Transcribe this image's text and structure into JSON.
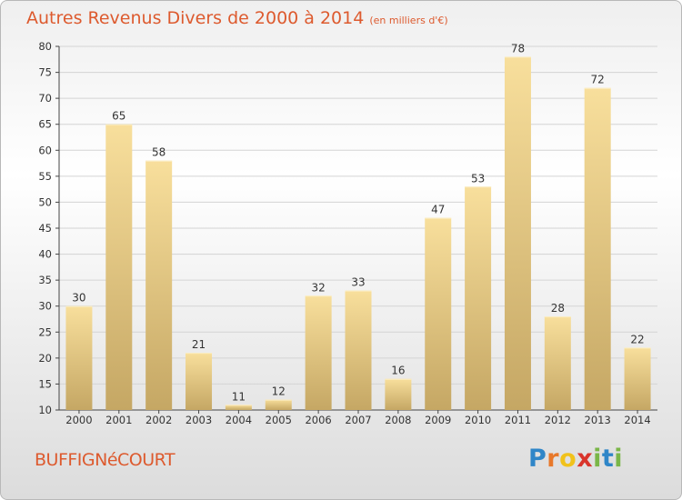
{
  "title": "Autres Revenus Divers de 2000 à 2014",
  "subtitle": "(en milliers d'€)",
  "location": "BUFFIGNéCOURT",
  "logo": {
    "letters": [
      "P",
      "r",
      "o",
      "x",
      "i",
      "t",
      "i"
    ],
    "colors": [
      "#2f86c8",
      "#e8782a",
      "#f1c21b",
      "#d9342b",
      "#7ab648",
      "#2f86c8",
      "#7ab648"
    ]
  },
  "colors": {
    "bar_top": "#f8df9c",
    "bar_bottom": "#c5a764",
    "title": "#dd5a2e"
  },
  "chart_data": {
    "type": "bar",
    "title": "Autres Revenus Divers de 2000 à 2014",
    "subtitle": "(en milliers d'€)",
    "categories": [
      "2000",
      "2001",
      "2002",
      "2003",
      "2004",
      "2005",
      "2006",
      "2007",
      "2008",
      "2009",
      "2010",
      "2011",
      "2012",
      "2013",
      "2014"
    ],
    "values": [
      30,
      65,
      58,
      21,
      11,
      12,
      32,
      33,
      16,
      47,
      53,
      78,
      28,
      72,
      22
    ],
    "ylim": [
      10,
      80
    ],
    "yticks": [
      10,
      15,
      20,
      25,
      30,
      35,
      40,
      45,
      50,
      55,
      60,
      65,
      70,
      75,
      80
    ],
    "grid": true,
    "legend": "none"
  }
}
